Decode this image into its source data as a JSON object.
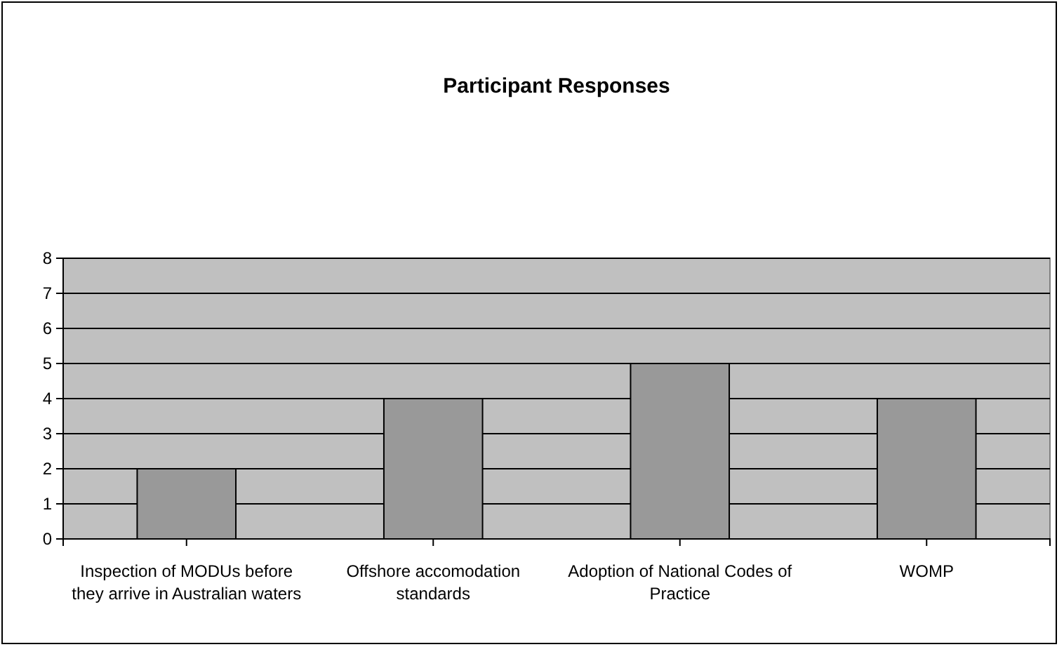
{
  "chart_data": {
    "type": "bar",
    "title": "Participant Responses",
    "categories": [
      "Inspection of MODUs before they arrive in Australian waters",
      "Offshore accomodation standards",
      "Adoption of National Codes of Practice",
      "WOMP"
    ],
    "values": [
      2,
      4,
      5,
      4
    ],
    "color": "#999999",
    "ylim": [
      0,
      8
    ],
    "yticks": [
      0,
      1,
      2,
      3,
      4,
      5,
      6,
      7,
      8
    ],
    "grid": "y"
  }
}
